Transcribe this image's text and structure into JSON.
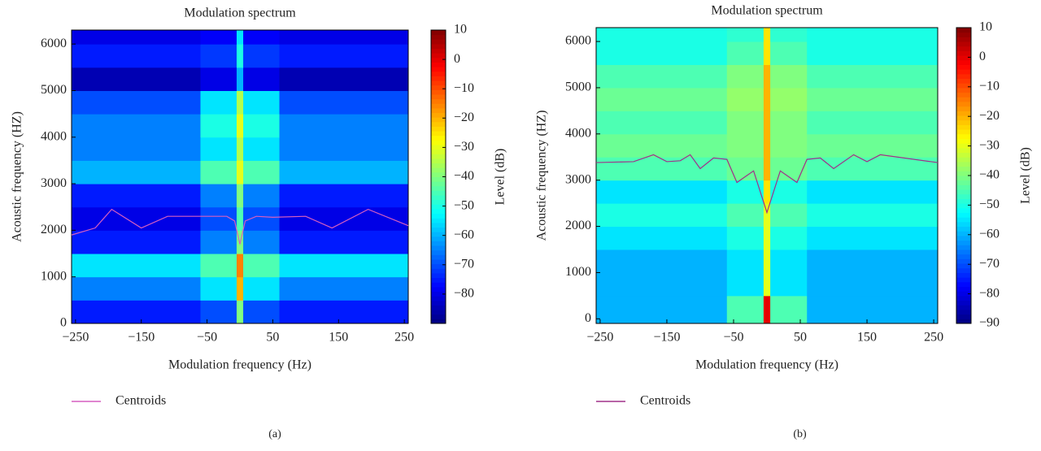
{
  "chart_data": [
    {
      "type": "heatmap",
      "title": "Modulation spectrum",
      "xlabel": "Modulation frequency (Hz)",
      "ylabel": "Acoustic frequency (HZ)",
      "colorbar_label": "Level (dB)",
      "caption": "(a)",
      "xlim": [
        -256,
        256
      ],
      "ylim": [
        0,
        6300
      ],
      "clim": [
        -90,
        10
      ],
      "xticks": [
        {
          "value": -250,
          "label": "−250"
        },
        {
          "value": -150,
          "label": "−150"
        },
        {
          "value": -50,
          "label": "−50"
        },
        50,
        150,
        250
      ],
      "yticks": [
        0,
        1000,
        2000,
        3000,
        4000,
        5000,
        6000
      ],
      "cticks": [
        10,
        0,
        {
          "value": -10,
          "label": "−10"
        },
        {
          "value": -20,
          "label": "−20"
        },
        {
          "value": -30,
          "label": "−30"
        },
        {
          "value": -40,
          "label": "−40"
        },
        {
          "value": -50,
          "label": "−50"
        },
        {
          "value": -60,
          "label": "−60"
        },
        {
          "value": -70,
          "label": "−70"
        },
        {
          "value": -80,
          "label": "−80"
        }
      ],
      "xbins": [
        -256,
        -60,
        -5,
        5,
        60,
        256
      ],
      "ybins": [
        0,
        500,
        1000,
        1500,
        2000,
        2500,
        3000,
        3500,
        4000,
        4500,
        5000,
        5500,
        6000,
        6300
      ],
      "z": [
        [
          -75,
          -70,
          -40,
          -70,
          -75
        ],
        [
          -65,
          -55,
          -20,
          -55,
          -65
        ],
        [
          -55,
          -45,
          -15,
          -45,
          -55
        ],
        [
          -75,
          -65,
          -40,
          -65,
          -75
        ],
        [
          -80,
          -70,
          -45,
          -70,
          -80
        ],
        [
          -75,
          -65,
          -40,
          -65,
          -75
        ],
        [
          -60,
          -45,
          -30,
          -45,
          -60
        ],
        [
          -65,
          -55,
          -35,
          -55,
          -65
        ],
        [
          -65,
          -50,
          -30,
          -50,
          -65
        ],
        [
          -70,
          -55,
          -35,
          -55,
          -70
        ],
        [
          -85,
          -80,
          -60,
          -80,
          -85
        ],
        [
          -75,
          -72,
          -50,
          -72,
          -75
        ],
        [
          -80,
          -78,
          -55,
          -78,
          -80
        ]
      ],
      "series": [
        {
          "name": "Centroids",
          "color": "#d65fc0",
          "x": [
            -256,
            -220,
            -195,
            -150,
            -110,
            -50,
            -20,
            -8,
            0,
            8,
            25,
            50,
            100,
            140,
            195,
            256
          ],
          "values": [
            1900,
            2050,
            2450,
            2050,
            2300,
            2300,
            2300,
            2200,
            1700,
            2200,
            2300,
            2280,
            2300,
            2050,
            2450,
            2100
          ]
        }
      ]
    },
    {
      "type": "heatmap",
      "title": "Modulation spectrum",
      "xlabel": "Modulation frequency (Hz)",
      "ylabel": "Acoustic frequency (HZ)",
      "colorbar_label": "Level (dB)",
      "caption": "(b)",
      "xlim": [
        -256,
        256
      ],
      "ylim": [
        -100,
        6300
      ],
      "clim": [
        -90,
        10
      ],
      "xticks": [
        {
          "value": -250,
          "label": "−250"
        },
        {
          "value": -150,
          "label": "−150"
        },
        {
          "value": -50,
          "label": "−50"
        },
        50,
        150,
        250
      ],
      "yticks": [
        0,
        1000,
        2000,
        3000,
        4000,
        5000,
        6000
      ],
      "cticks": [
        10,
        0,
        {
          "value": -10,
          "label": "−10"
        },
        {
          "value": -20,
          "label": "−20"
        },
        {
          "value": -30,
          "label": "−30"
        },
        {
          "value": -40,
          "label": "−40"
        },
        {
          "value": -50,
          "label": "−50"
        },
        {
          "value": -60,
          "label": "−60"
        },
        {
          "value": -70,
          "label": "−70"
        },
        {
          "value": -80,
          "label": "−80"
        },
        {
          "value": -90,
          "label": "−90"
        }
      ],
      "xbins": [
        -256,
        -60,
        -5,
        5,
        60,
        256
      ],
      "ybins": [
        -100,
        500,
        1000,
        1500,
        2000,
        2500,
        3000,
        3500,
        4000,
        4500,
        5000,
        5500,
        6000,
        6300
      ],
      "z": [
        [
          -60,
          -45,
          0,
          -45,
          -60
        ],
        [
          -60,
          -55,
          -30,
          -55,
          -60
        ],
        [
          -60,
          -55,
          -30,
          -55,
          -60
        ],
        [
          -55,
          -50,
          -30,
          -50,
          -55
        ],
        [
          -50,
          -45,
          -30,
          -45,
          -50
        ],
        [
          -55,
          -50,
          -25,
          -50,
          -55
        ],
        [
          -45,
          -42,
          -20,
          -42,
          -45
        ],
        [
          -42,
          -40,
          -20,
          -40,
          -42
        ],
        [
          -45,
          -40,
          -20,
          -40,
          -45
        ],
        [
          -42,
          -38,
          -20,
          -38,
          -42
        ],
        [
          -45,
          -40,
          -20,
          -40,
          -45
        ],
        [
          -50,
          -45,
          -25,
          -45,
          -50
        ],
        [
          -50,
          -48,
          -25,
          -48,
          -50
        ]
      ],
      "series": [
        {
          "name": "Centroids",
          "color": "#a0308a",
          "x": [
            -256,
            -200,
            -170,
            -150,
            -130,
            -115,
            -100,
            -80,
            -60,
            -45,
            -20,
            0,
            20,
            45,
            60,
            80,
            100,
            130,
            150,
            170,
            256
          ],
          "values": [
            3380,
            3400,
            3550,
            3400,
            3420,
            3550,
            3250,
            3480,
            3450,
            2950,
            3200,
            2300,
            3200,
            2950,
            3450,
            3480,
            3250,
            3550,
            3400,
            3550,
            3380
          ]
        }
      ]
    }
  ]
}
